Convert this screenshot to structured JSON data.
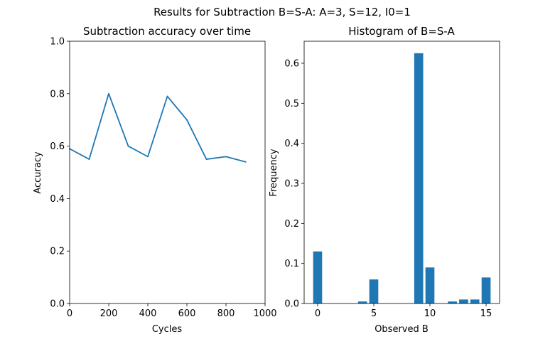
{
  "figure": {
    "suptitle": "Results for Subtraction B=S-A: A=3, S=12, I0=1"
  },
  "chart_data": [
    {
      "type": "line",
      "title": "Subtraction accuracy over time",
      "xlabel": "Cycles",
      "ylabel": "Accuracy",
      "xlim": [
        0,
        1000
      ],
      "ylim": [
        0,
        1.0
      ],
      "xticks": [
        0,
        200,
        400,
        600,
        800,
        1000
      ],
      "xtick_labels": [
        "0",
        "200",
        "400",
        "600",
        "800",
        "1000"
      ],
      "yticks": [
        0.0,
        0.2,
        0.4,
        0.6,
        0.8,
        1.0
      ],
      "ytick_labels": [
        "0.0",
        "0.2",
        "0.4",
        "0.6",
        "0.8",
        "1.0"
      ],
      "grid": false,
      "color": "#1f77b4",
      "x": [
        0,
        100,
        200,
        300,
        400,
        500,
        600,
        700,
        800,
        900
      ],
      "y": [
        0.59,
        0.55,
        0.8,
        0.6,
        0.56,
        0.79,
        0.7,
        0.55,
        0.56,
        0.54
      ]
    },
    {
      "type": "bar",
      "title": "Histogram of B=S-A",
      "xlabel": "Observed B",
      "ylabel": "Frequency",
      "xlim": [
        -1.2,
        16.2
      ],
      "ylim": [
        0,
        0.655
      ],
      "xticks": [
        0,
        5,
        10,
        15
      ],
      "xtick_labels": [
        "0",
        "5",
        "10",
        "15"
      ],
      "yticks": [
        0.0,
        0.1,
        0.2,
        0.3,
        0.4,
        0.5,
        0.6
      ],
      "ytick_labels": [
        "0.0",
        "0.1",
        "0.2",
        "0.3",
        "0.4",
        "0.5",
        "0.6"
      ],
      "grid": false,
      "color": "#1f77b4",
      "categories": [
        0,
        4,
        5,
        9,
        10,
        12,
        13,
        14,
        15
      ],
      "values": [
        0.13,
        0.005,
        0.06,
        0.625,
        0.09,
        0.005,
        0.01,
        0.01,
        0.065
      ]
    }
  ]
}
